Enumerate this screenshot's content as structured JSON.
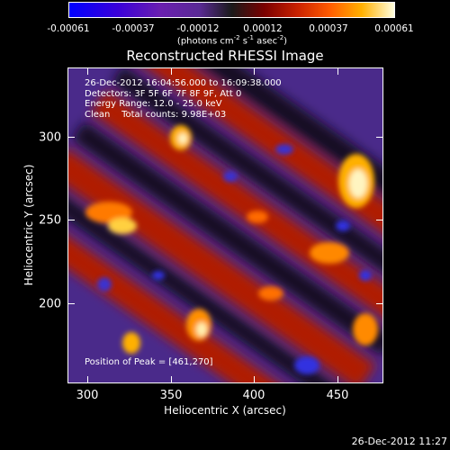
{
  "colorbar": {
    "tick_labels": [
      "-0.00061",
      "-0.00037",
      "-0.00012",
      "0.00012",
      "0.00037",
      "0.00061"
    ],
    "units_main": "(photons cm",
    "units_exp1": "-2",
    "units_mid1": " s",
    "units_exp2": "-1",
    "units_mid2": " asec",
    "units_exp3": "-2",
    "units_end": ")",
    "colors": [
      "#0000ff",
      "#6a1fb0",
      "#1a1a1a",
      "#c82000",
      "#ffb000",
      "#ffffe0"
    ]
  },
  "title": "Reconstructed RHESSI Image",
  "info": {
    "line1": "26-Dec-2012 16:04:56.000 to 16:09:38.000",
    "line2": "Detectors: 3F 5F 6F 7F 8F 9F, Att 0",
    "line3": "Energy Range: 12.0 - 25.0 keV",
    "line4": "Clean    Total counts: 9.98E+03"
  },
  "peak": "Position of Peak = [461,270]",
  "axes": {
    "xlabel": "Heliocentric X (arcsec)",
    "ylabel": "Heliocentric Y (arcsec)",
    "xticks": [
      "300",
      "350",
      "400",
      "450"
    ],
    "yticks": [
      "300",
      "250",
      "200"
    ]
  },
  "timestamp": "26-Dec-2012 11:27"
}
